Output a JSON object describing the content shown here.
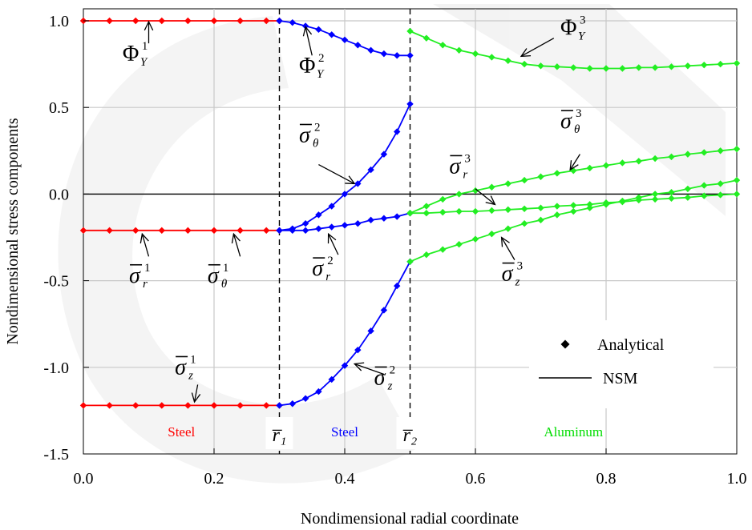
{
  "chart_data": {
    "type": "line",
    "title": "",
    "xlabel": "Nondimensional radial coordinate",
    "ylabel": "Nondimensional stress components",
    "xlim": [
      0.0,
      1.0
    ],
    "ylim": [
      -1.5,
      1.0
    ],
    "xticks": [
      0.0,
      0.2,
      0.4,
      0.6,
      0.8,
      1.0
    ],
    "xtick_labels": [
      "0.0",
      "0.2",
      "0.4",
      "0.6",
      "0.8",
      "1.0"
    ],
    "yticks": [
      -1.5,
      -1.0,
      -0.5,
      0.0,
      0.5,
      1.0
    ],
    "ytick_labels": [
      "-1.5",
      "-1.0",
      "-0.5",
      "0.0",
      "0.5",
      "1.0"
    ],
    "grid": true,
    "legend": {
      "placement": "bottom-right",
      "entries": [
        {
          "label": "Analytical",
          "marker": "diamond"
        },
        {
          "label": "NSM",
          "marker": "line"
        }
      ]
    },
    "interfaces": [
      0.3,
      0.5
    ],
    "interface_labels": [
      "r̅₁",
      "r̅₂"
    ],
    "region_labels": [
      {
        "text": "Steel",
        "x": 0.15,
        "color": "#ff0000"
      },
      {
        "text": "Steel",
        "x": 0.4,
        "color": "#0000ff"
      },
      {
        "text": "Aluminum",
        "x": 0.75,
        "color": "#00dd00"
      }
    ],
    "colors": {
      "layer1": "#ff0000",
      "layer2": "#0000ff",
      "layer3": "#22ee22"
    },
    "series": [
      {
        "group": "phi1",
        "color": "#ff0000",
        "x": [
          0.0,
          0.04,
          0.08,
          0.12,
          0.16,
          0.2,
          0.24,
          0.28,
          0.3
        ],
        "y": [
          1.0,
          1.0,
          1.0,
          1.0,
          1.0,
          1.0,
          1.0,
          1.0,
          1.0
        ]
      },
      {
        "group": "sr1",
        "color": "#ff0000",
        "x": [
          0.0,
          0.04,
          0.08,
          0.12,
          0.16,
          0.2,
          0.24,
          0.28,
          0.3
        ],
        "y": [
          -0.21,
          -0.21,
          -0.21,
          -0.21,
          -0.21,
          -0.21,
          -0.21,
          -0.21,
          -0.21
        ]
      },
      {
        "group": "sz1",
        "color": "#ff0000",
        "x": [
          0.0,
          0.04,
          0.08,
          0.12,
          0.16,
          0.2,
          0.24,
          0.28,
          0.3
        ],
        "y": [
          -1.22,
          -1.22,
          -1.22,
          -1.22,
          -1.22,
          -1.22,
          -1.22,
          -1.22,
          -1.22
        ]
      },
      {
        "group": "phi2",
        "color": "#0000ff",
        "x": [
          0.3,
          0.32,
          0.34,
          0.36,
          0.38,
          0.4,
          0.42,
          0.44,
          0.46,
          0.48,
          0.5
        ],
        "y": [
          1.0,
          0.99,
          0.97,
          0.95,
          0.92,
          0.89,
          0.86,
          0.83,
          0.81,
          0.8,
          0.8
        ]
      },
      {
        "group": "st2",
        "color": "#0000ff",
        "x": [
          0.3,
          0.32,
          0.34,
          0.36,
          0.38,
          0.4,
          0.42,
          0.44,
          0.46,
          0.48,
          0.5
        ],
        "y": [
          -0.21,
          -0.2,
          -0.17,
          -0.12,
          -0.07,
          0.0,
          0.06,
          0.14,
          0.23,
          0.36,
          0.52
        ]
      },
      {
        "group": "sr2",
        "color": "#0000ff",
        "x": [
          0.3,
          0.32,
          0.34,
          0.36,
          0.38,
          0.4,
          0.42,
          0.44,
          0.46,
          0.48,
          0.5
        ],
        "y": [
          -0.21,
          -0.21,
          -0.21,
          -0.2,
          -0.19,
          -0.18,
          -0.17,
          -0.15,
          -0.14,
          -0.13,
          -0.11
        ]
      },
      {
        "group": "sz2",
        "color": "#0000ff",
        "x": [
          0.3,
          0.32,
          0.34,
          0.36,
          0.38,
          0.4,
          0.42,
          0.44,
          0.46,
          0.48,
          0.5
        ],
        "y": [
          -1.22,
          -1.21,
          -1.18,
          -1.14,
          -1.07,
          -0.99,
          -0.9,
          -0.79,
          -0.67,
          -0.53,
          -0.39
        ]
      },
      {
        "group": "phi3",
        "color": "#22ee22",
        "x": [
          0.5,
          0.525,
          0.55,
          0.575,
          0.6,
          0.625,
          0.65,
          0.675,
          0.7,
          0.725,
          0.75,
          0.775,
          0.8,
          0.825,
          0.85,
          0.875,
          0.9,
          0.925,
          0.95,
          0.975,
          1.0
        ],
        "y": [
          0.94,
          0.9,
          0.86,
          0.83,
          0.81,
          0.79,
          0.77,
          0.75,
          0.74,
          0.735,
          0.73,
          0.725,
          0.725,
          0.725,
          0.73,
          0.73,
          0.735,
          0.74,
          0.745,
          0.75,
          0.755
        ]
      },
      {
        "group": "st3",
        "color": "#22ee22",
        "x": [
          0.5,
          0.525,
          0.55,
          0.575,
          0.6,
          0.625,
          0.65,
          0.675,
          0.7,
          0.725,
          0.75,
          0.775,
          0.8,
          0.825,
          0.85,
          0.875,
          0.9,
          0.925,
          0.95,
          0.975,
          1.0
        ],
        "y": [
          -0.11,
          -0.07,
          -0.03,
          0.0,
          0.02,
          0.04,
          0.06,
          0.08,
          0.1,
          0.12,
          0.135,
          0.15,
          0.165,
          0.18,
          0.19,
          0.205,
          0.215,
          0.23,
          0.24,
          0.25,
          0.26
        ]
      },
      {
        "group": "sr3",
        "color": "#22ee22",
        "x": [
          0.5,
          0.525,
          0.55,
          0.575,
          0.6,
          0.625,
          0.65,
          0.675,
          0.7,
          0.725,
          0.75,
          0.775,
          0.8,
          0.825,
          0.85,
          0.875,
          0.9,
          0.925,
          0.95,
          0.975,
          1.0
        ],
        "y": [
          -0.11,
          -0.11,
          -0.105,
          -0.1,
          -0.1,
          -0.095,
          -0.09,
          -0.085,
          -0.08,
          -0.07,
          -0.065,
          -0.06,
          -0.05,
          -0.045,
          -0.035,
          -0.03,
          -0.025,
          -0.02,
          -0.01,
          -0.005,
          0.0
        ]
      },
      {
        "group": "sz3",
        "color": "#22ee22",
        "x": [
          0.5,
          0.525,
          0.55,
          0.575,
          0.6,
          0.625,
          0.65,
          0.675,
          0.7,
          0.725,
          0.75,
          0.775,
          0.8,
          0.825,
          0.85,
          0.875,
          0.9,
          0.925,
          0.95,
          0.975,
          1.0
        ],
        "y": [
          -0.39,
          -0.35,
          -0.32,
          -0.29,
          -0.26,
          -0.23,
          -0.2,
          -0.17,
          -0.15,
          -0.12,
          -0.1,
          -0.08,
          -0.06,
          -0.04,
          -0.02,
          0.0,
          0.01,
          0.03,
          0.05,
          0.06,
          0.08
        ]
      }
    ],
    "annotations": [
      {
        "id": "phi1",
        "sym": "Φ",
        "bar": false,
        "sub": "Y",
        "sup": "1",
        "tx": 0.06,
        "ty": 0.77,
        "ax": 0.1,
        "ay": 0.87,
        "hx": 0.1,
        "hy": 0.995
      },
      {
        "id": "phi2",
        "sym": "Φ",
        "bar": false,
        "sub": "Y",
        "sup": "2",
        "tx": 0.33,
        "ty": 0.7,
        "ax": 0.35,
        "ay": 0.8,
        "hx": 0.34,
        "hy": 0.965
      },
      {
        "id": "phi3",
        "sym": "Φ",
        "bar": false,
        "sub": "Y",
        "sup": "3",
        "tx": 0.73,
        "ty": 0.92,
        "ax": 0.72,
        "ay": 0.9,
        "hx": 0.67,
        "hy": 0.795
      },
      {
        "id": "st2",
        "sym": "σ",
        "bar": true,
        "sub": "θ",
        "sup": "2",
        "tx": 0.33,
        "ty": 0.3,
        "ax": 0.36,
        "ay": 0.17,
        "hx": 0.415,
        "hy": 0.06
      },
      {
        "id": "sr3",
        "sym": "σ",
        "bar": true,
        "sub": "r",
        "sup": "3",
        "tx": 0.56,
        "ty": 0.12,
        "ax": 0.6,
        "ay": 0.03,
        "hx": 0.63,
        "hy": -0.06
      },
      {
        "id": "st3",
        "sym": "σ",
        "bar": true,
        "sub": "θ",
        "sup": "3",
        "tx": 0.73,
        "ty": 0.38,
        "ax": 0.76,
        "ay": 0.23,
        "hx": 0.745,
        "hy": 0.14
      },
      {
        "id": "sr1",
        "sym": "σ",
        "bar": true,
        "sub": "r",
        "sup": "1",
        "tx": 0.07,
        "ty": -0.51,
        "ax": 0.1,
        "ay": -0.36,
        "hx": 0.09,
        "hy": -0.23
      },
      {
        "id": "st1",
        "sym": "σ",
        "bar": true,
        "sub": "θ",
        "sup": "1",
        "tx": 0.19,
        "ty": -0.51,
        "ax": 0.24,
        "ay": -0.36,
        "hx": 0.23,
        "hy": -0.23
      },
      {
        "id": "sr2",
        "sym": "σ",
        "bar": true,
        "sub": "r",
        "sup": "2",
        "tx": 0.35,
        "ty": -0.47,
        "ax": 0.39,
        "ay": -0.35,
        "hx": 0.375,
        "hy": -0.23
      },
      {
        "id": "sz3",
        "sym": "σ",
        "bar": true,
        "sub": "z",
        "sup": "3",
        "tx": 0.64,
        "ty": -0.5,
        "ax": 0.66,
        "ay": -0.38,
        "hx": 0.64,
        "hy": -0.25
      },
      {
        "id": "sz1",
        "sym": "σ",
        "bar": true,
        "sub": "z",
        "sup": "1",
        "tx": 0.14,
        "ty": -1.04,
        "ax": 0.175,
        "ay": -1.1,
        "hx": 0.17,
        "hy": -1.2
      },
      {
        "id": "sz2",
        "sym": "σ",
        "bar": true,
        "sub": "z",
        "sup": "2",
        "tx": 0.445,
        "ty": -1.1,
        "ax": 0.46,
        "ay": -1.04,
        "hx": 0.415,
        "hy": -0.98
      }
    ]
  }
}
